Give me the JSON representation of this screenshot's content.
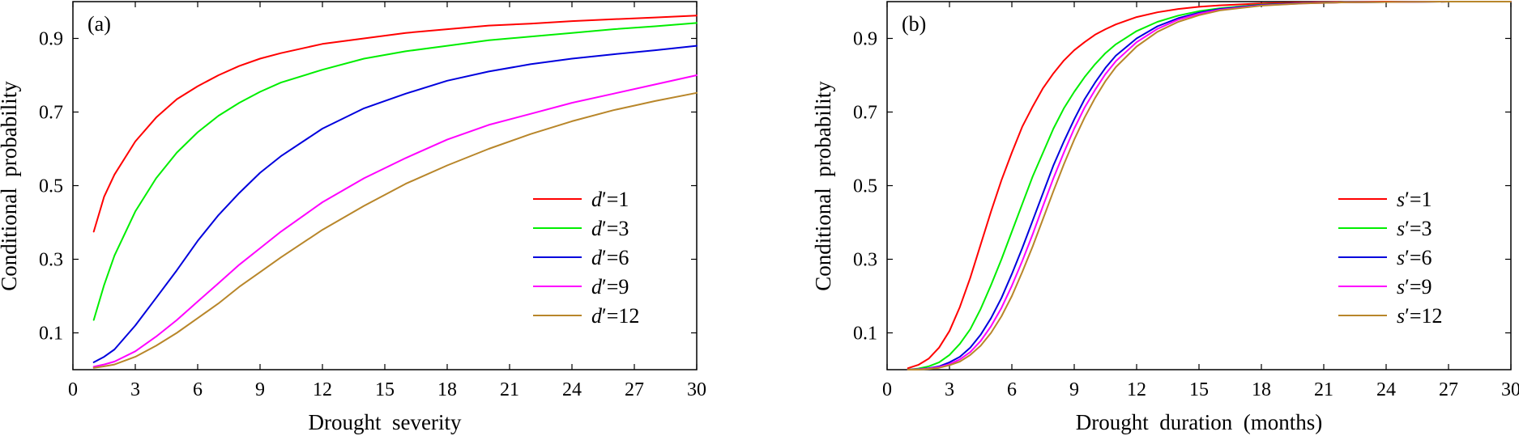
{
  "chart_data": [
    {
      "type": "line",
      "panel_label": "(a)",
      "xlabel": "Drought  severity",
      "ylabel": "Conditional  probability",
      "xlim": [
        0,
        30
      ],
      "ylim": [
        0,
        1
      ],
      "xticks": [
        0,
        3,
        6,
        9,
        12,
        15,
        18,
        21,
        24,
        27,
        30
      ],
      "yticks": [
        0.1,
        0.3,
        0.5,
        0.7,
        0.9
      ],
      "legend_position": "right-middle",
      "legend_var": "d",
      "legend_eq": "′=",
      "x": [
        1,
        1.5,
        2,
        3,
        4,
        5,
        6,
        7,
        8,
        9,
        10,
        12,
        14,
        16,
        18,
        20,
        22,
        24,
        26,
        28,
        30
      ],
      "series": [
        {
          "name": "d′=1",
          "legend_value": "1",
          "color": "#ff0000",
          "values": [
            0.375,
            0.47,
            0.53,
            0.62,
            0.685,
            0.735,
            0.77,
            0.8,
            0.825,
            0.845,
            0.86,
            0.885,
            0.9,
            0.915,
            0.925,
            0.935,
            0.94,
            0.947,
            0.952,
            0.957,
            0.962
          ]
        },
        {
          "name": "d′=3",
          "legend_value": "3",
          "color": "#00ee00",
          "values": [
            0.135,
            0.23,
            0.31,
            0.43,
            0.52,
            0.59,
            0.645,
            0.69,
            0.725,
            0.755,
            0.78,
            0.815,
            0.845,
            0.865,
            0.88,
            0.895,
            0.905,
            0.915,
            0.925,
            0.933,
            0.942
          ]
        },
        {
          "name": "d′=6",
          "legend_value": "6",
          "color": "#0000dd",
          "values": [
            0.02,
            0.035,
            0.055,
            0.12,
            0.195,
            0.27,
            0.35,
            0.42,
            0.48,
            0.535,
            0.58,
            0.655,
            0.71,
            0.75,
            0.785,
            0.81,
            0.83,
            0.845,
            0.857,
            0.868,
            0.88
          ]
        },
        {
          "name": "d′=9",
          "legend_value": "9",
          "color": "#ff00ff",
          "values": [
            0.008,
            0.014,
            0.022,
            0.05,
            0.09,
            0.135,
            0.185,
            0.235,
            0.285,
            0.33,
            0.375,
            0.455,
            0.52,
            0.575,
            0.625,
            0.665,
            0.695,
            0.725,
            0.75,
            0.775,
            0.8
          ]
        },
        {
          "name": "d′=12",
          "legend_value": "12",
          "color": "#b8862a",
          "values": [
            0.005,
            0.009,
            0.014,
            0.035,
            0.065,
            0.1,
            0.14,
            0.18,
            0.225,
            0.265,
            0.305,
            0.38,
            0.445,
            0.505,
            0.555,
            0.6,
            0.64,
            0.675,
            0.705,
            0.73,
            0.752
          ]
        }
      ]
    },
    {
      "type": "line",
      "panel_label": "(b)",
      "xlabel": "Drought  duration  (months)",
      "ylabel": "Conditional  probability",
      "xlim": [
        0,
        30
      ],
      "ylim": [
        0,
        1
      ],
      "xticks": [
        0,
        3,
        6,
        9,
        12,
        15,
        18,
        21,
        24,
        27,
        30
      ],
      "yticks": [
        0.1,
        0.3,
        0.5,
        0.7,
        0.9
      ],
      "legend_position": "right-middle",
      "legend_var": "s",
      "legend_eq": "′=",
      "x": [
        1,
        1.5,
        2,
        2.5,
        3,
        3.5,
        4,
        4.5,
        5,
        5.5,
        6,
        6.5,
        7,
        7.5,
        8,
        8.5,
        9,
        9.5,
        10,
        10.5,
        11,
        12,
        13,
        14,
        15,
        16,
        18,
        20,
        22,
        24,
        27,
        30
      ],
      "series": [
        {
          "name": "s′=1",
          "legend_value": "1",
          "color": "#ff0000",
          "values": [
            0.004,
            0.013,
            0.03,
            0.06,
            0.105,
            0.17,
            0.25,
            0.34,
            0.43,
            0.515,
            0.59,
            0.66,
            0.715,
            0.765,
            0.805,
            0.84,
            0.868,
            0.89,
            0.91,
            0.925,
            0.938,
            0.958,
            0.971,
            0.98,
            0.986,
            0.99,
            0.995,
            0.998,
            0.999,
            1.0,
            1.0,
            1.0
          ]
        },
        {
          "name": "s′=3",
          "legend_value": "3",
          "color": "#00ee00",
          "values": [
            0.0,
            0.003,
            0.009,
            0.02,
            0.04,
            0.07,
            0.11,
            0.165,
            0.23,
            0.3,
            0.375,
            0.45,
            0.525,
            0.59,
            0.655,
            0.71,
            0.755,
            0.795,
            0.83,
            0.86,
            0.884,
            0.92,
            0.945,
            0.962,
            0.974,
            0.982,
            0.992,
            0.996,
            0.998,
            0.999,
            1.0,
            1.0
          ]
        },
        {
          "name": "s′=6",
          "legend_value": "6",
          "color": "#0000dd",
          "values": [
            0.0,
            0.001,
            0.004,
            0.009,
            0.02,
            0.035,
            0.06,
            0.095,
            0.14,
            0.195,
            0.26,
            0.33,
            0.405,
            0.48,
            0.555,
            0.62,
            0.68,
            0.735,
            0.78,
            0.82,
            0.853,
            0.9,
            0.933,
            0.955,
            0.97,
            0.98,
            0.991,
            0.996,
            0.998,
            0.999,
            1.0,
            1.0
          ]
        },
        {
          "name": "s′=9",
          "legend_value": "9",
          "color": "#ff00ff",
          "values": [
            0.0,
            0.001,
            0.003,
            0.007,
            0.015,
            0.028,
            0.048,
            0.078,
            0.118,
            0.168,
            0.228,
            0.295,
            0.368,
            0.445,
            0.52,
            0.59,
            0.655,
            0.712,
            0.76,
            0.803,
            0.838,
            0.89,
            0.926,
            0.951,
            0.967,
            0.978,
            0.99,
            0.995,
            0.998,
            0.999,
            1.0,
            1.0
          ]
        },
        {
          "name": "s′=12",
          "legend_value": "12",
          "color": "#b8862a",
          "values": [
            0.0,
            0.0,
            0.002,
            0.005,
            0.012,
            0.022,
            0.04,
            0.065,
            0.1,
            0.145,
            0.2,
            0.265,
            0.335,
            0.41,
            0.485,
            0.558,
            0.625,
            0.685,
            0.738,
            0.784,
            0.822,
            0.878,
            0.918,
            0.945,
            0.963,
            0.976,
            0.989,
            0.995,
            0.998,
            0.999,
            1.0,
            1.0
          ]
        }
      ]
    }
  ]
}
